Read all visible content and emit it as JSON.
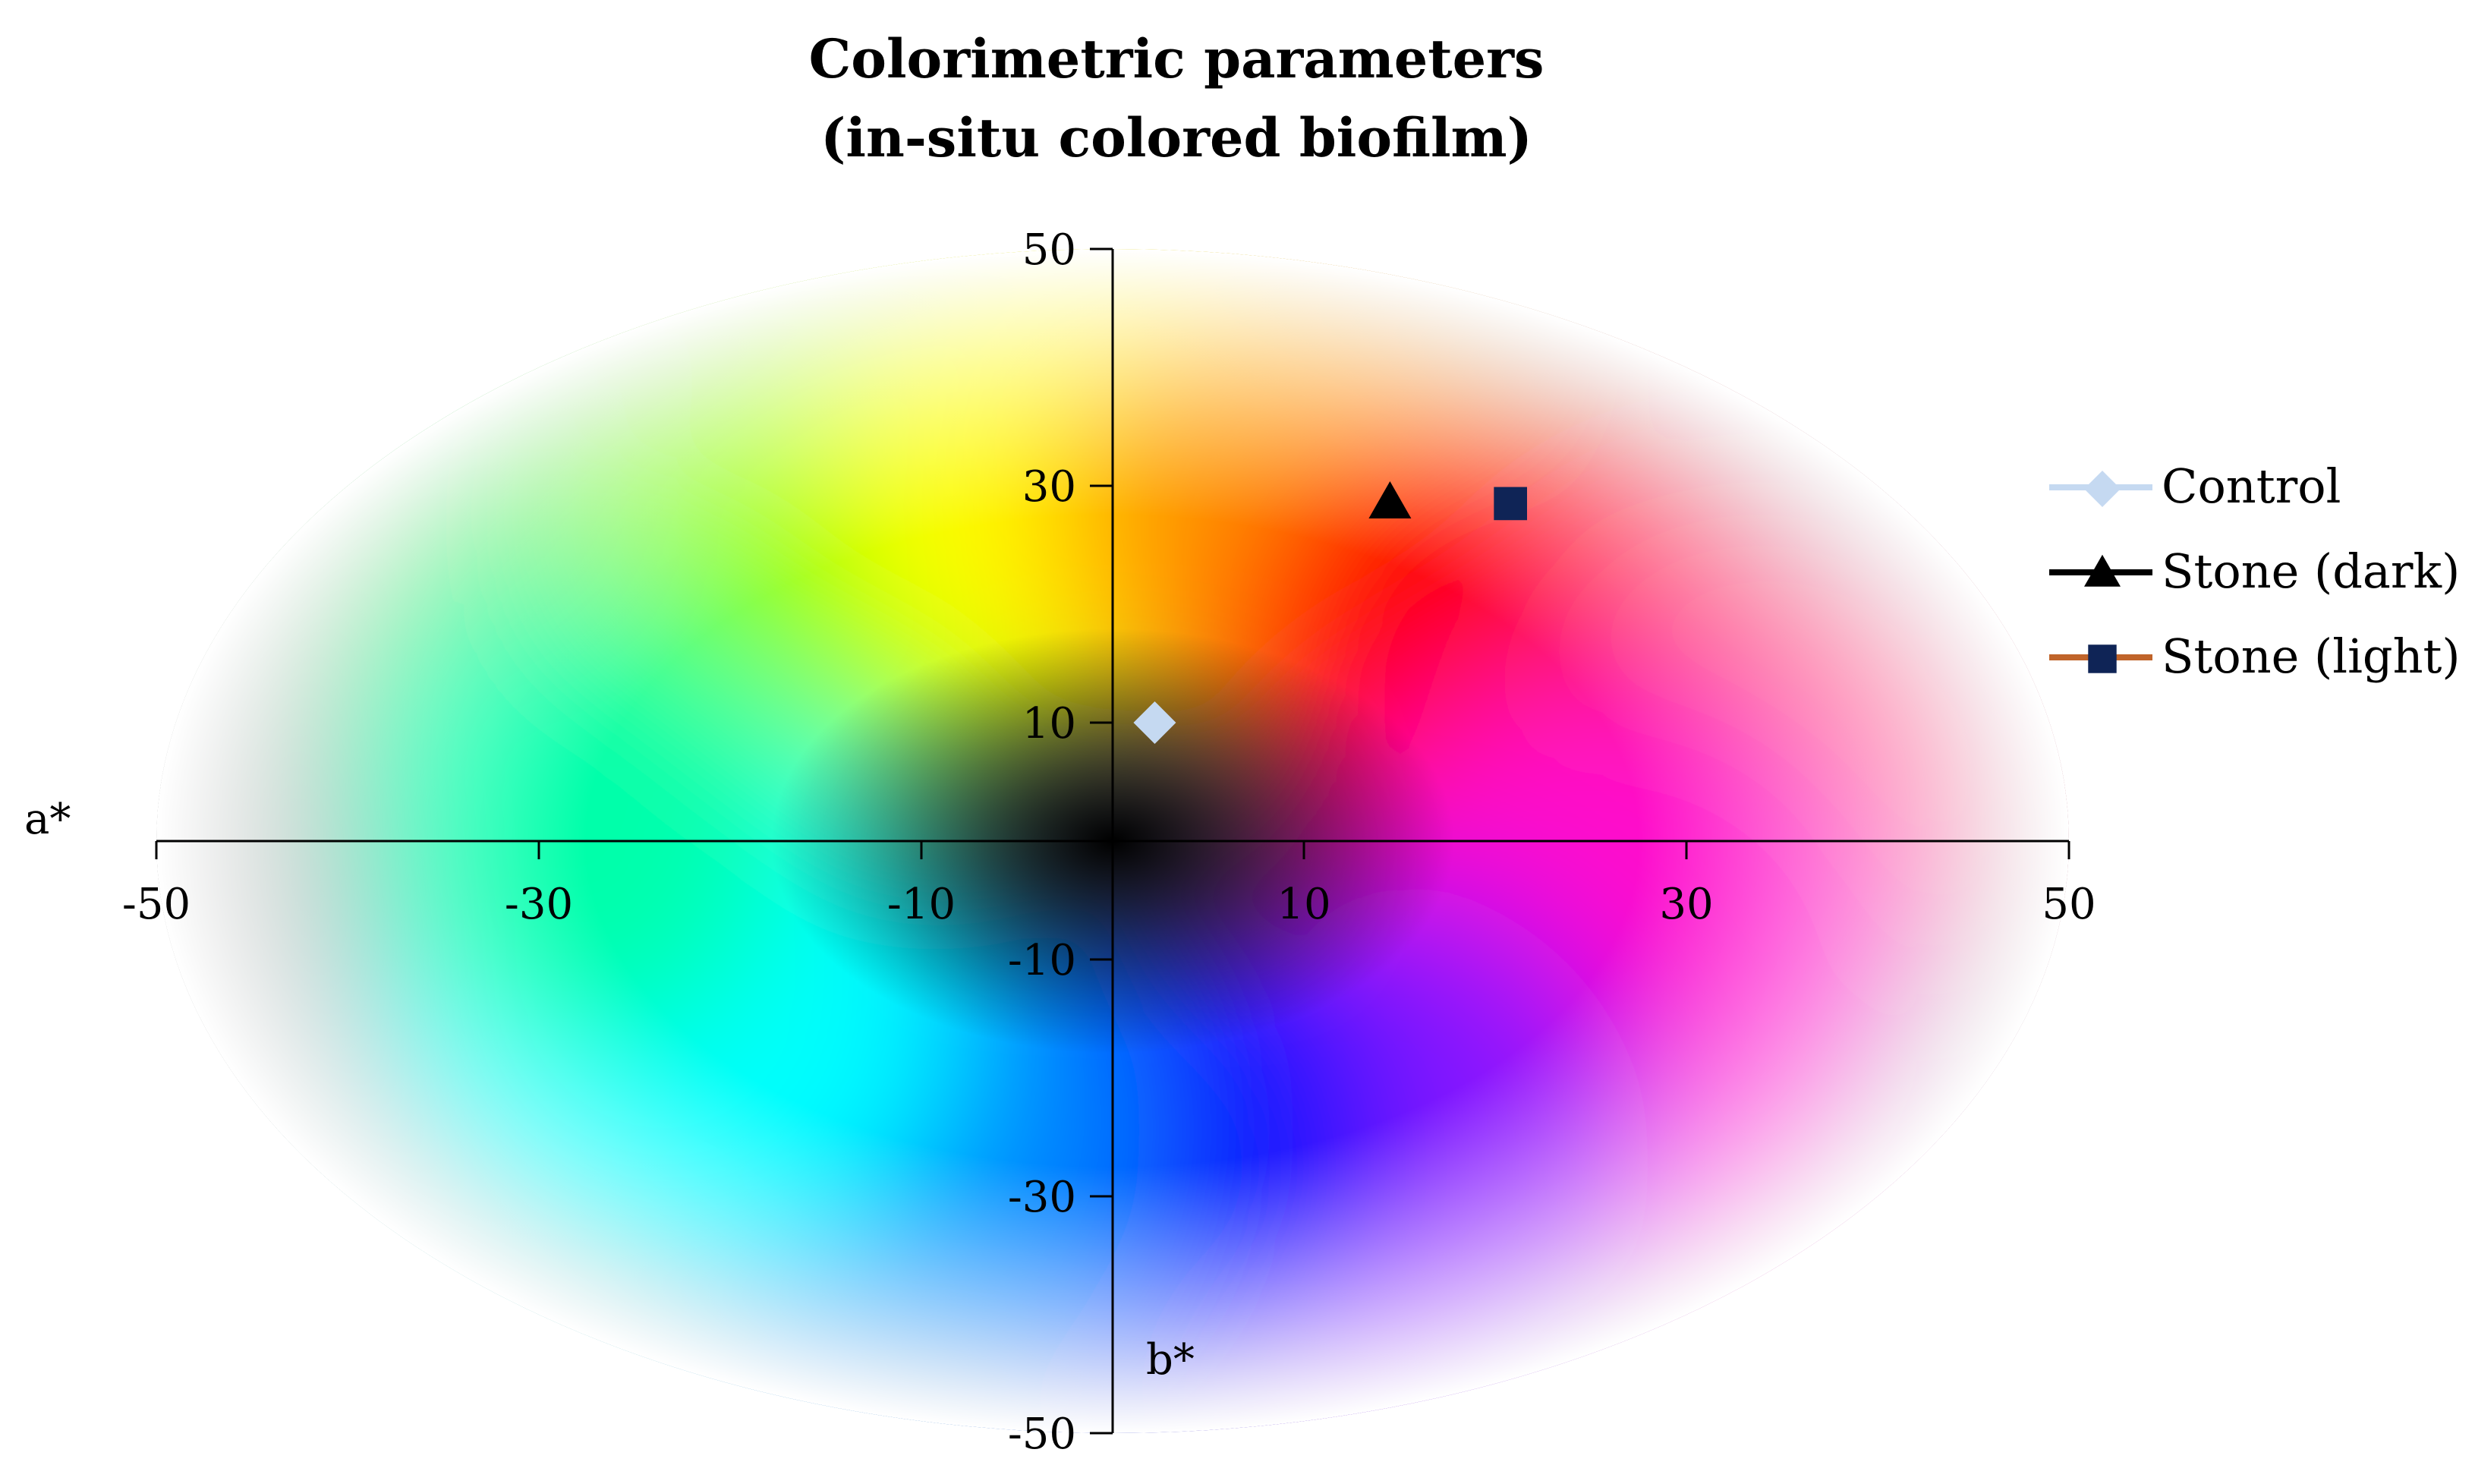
{
  "chart_data": {
    "type": "scatter",
    "title_lines": [
      "Colorimetric parameters",
      "(in-situ colored biofilm)"
    ],
    "xlabel": "a*",
    "ylabel": "b*",
    "xlim": [
      -50,
      50
    ],
    "ylim": [
      -50,
      50
    ],
    "x_ticks": [
      -50,
      -30,
      -10,
      10,
      30,
      50
    ],
    "y_ticks": [
      50,
      30,
      10,
      -10,
      -30,
      -50
    ],
    "grid": false,
    "background": "CIELAB a*b* color space gradient",
    "legend_position": "right",
    "series": [
      {
        "name": "Control",
        "marker": "diamond",
        "color": "#c5d9f1",
        "line_color": "#c5d9f1",
        "x": [
          2.2
        ],
        "y": [
          10
        ]
      },
      {
        "name": "Stone (dark)",
        "marker": "triangle",
        "color": "#000000",
        "line_color": "#000000",
        "x": [
          14.5
        ],
        "y": [
          28.5
        ]
      },
      {
        "name": "Stone (light)",
        "marker": "square",
        "color": "#0f2456",
        "line_color": "#c0642a",
        "x": [
          20.8
        ],
        "y": [
          28.5
        ]
      }
    ]
  }
}
